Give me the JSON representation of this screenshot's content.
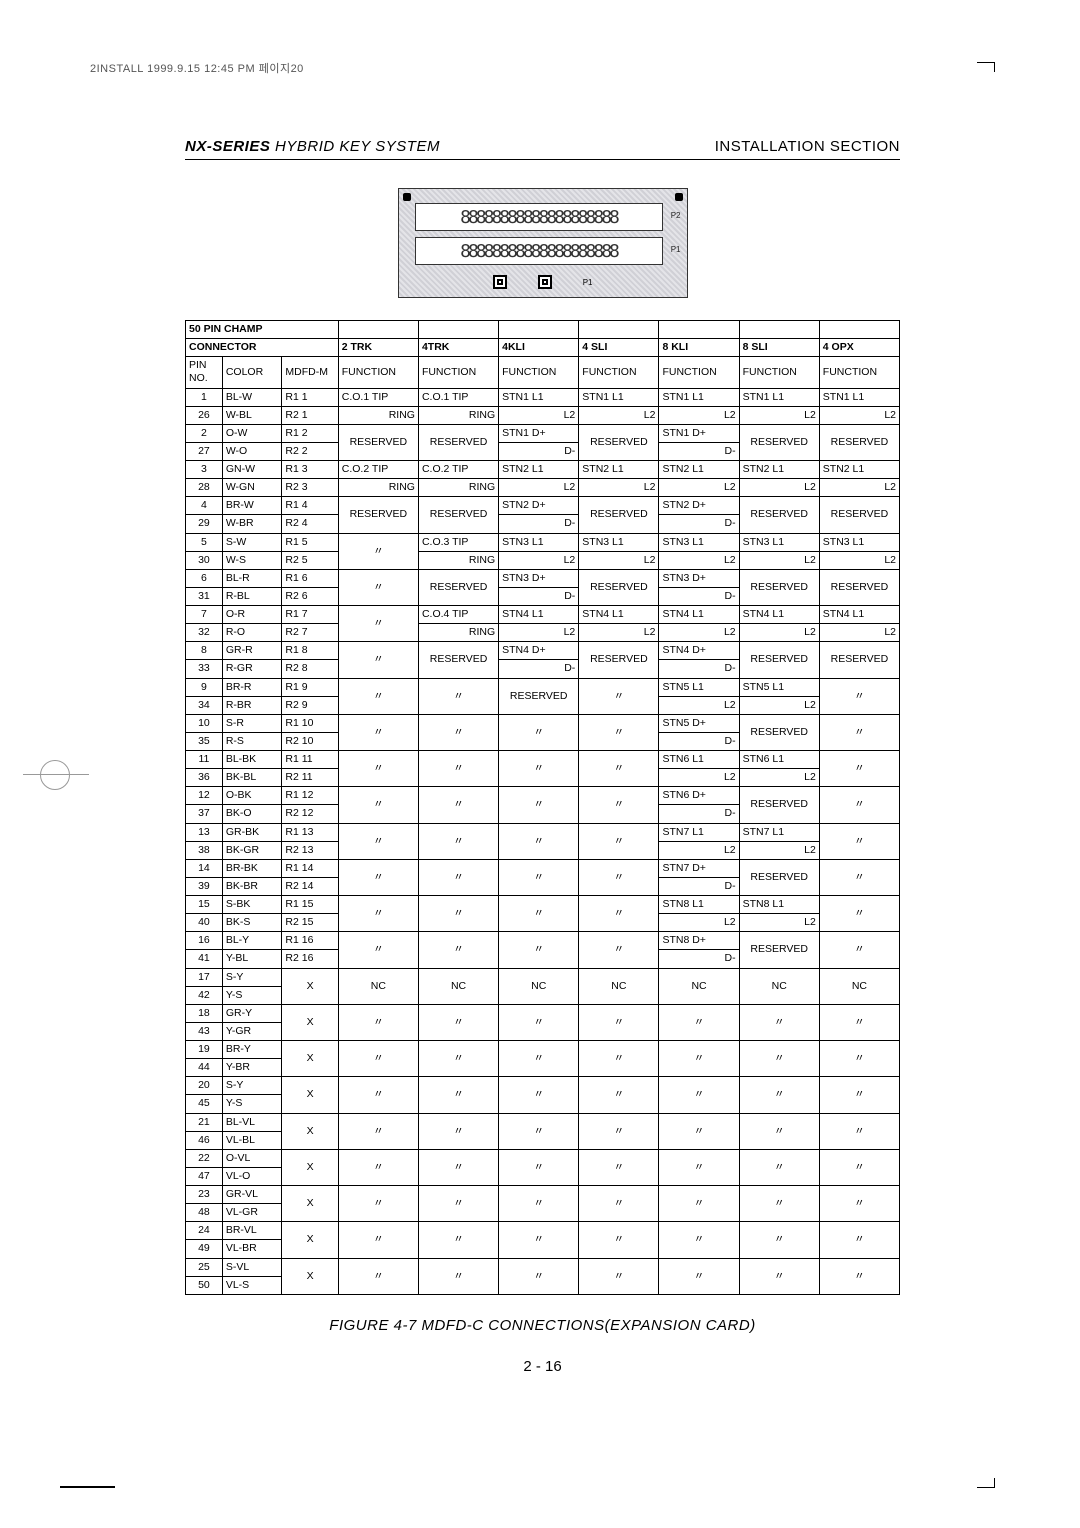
{
  "print_note": "2INSTALL  1999.9.15 12:45 PM  페이지20",
  "header": {
    "series": "NX-SERIES",
    "subtitle": "HYBRID KEY SYSTEM",
    "section": "INSTALLATION SECTION"
  },
  "connector": {
    "label_top": "P2",
    "label_bot": "P1",
    "bottom_label": "P1"
  },
  "table": {
    "title": "50 PIN CHAMP",
    "group_header_left": "CONNECTOR",
    "group_headers": [
      "2 TRK",
      "4TRK",
      "4KLI",
      "4 SLI",
      "8 KLI",
      "8 SLI",
      "4 OPX"
    ],
    "sub_headers_left": [
      "PIN NO.",
      "COLOR",
      "MDFD-M"
    ],
    "sub_header_fn": "FUNCTION",
    "rows": [
      {
        "pins": [
          "1",
          "26"
        ],
        "colors": [
          "BL-W",
          "W-BL"
        ],
        "mdfd": [
          "R1   1",
          "R2   1"
        ],
        "cells": [
          "C.O.1   TIP\nRING",
          "C.O.1   TIP\nRING",
          "STN1   L1\nL2",
          "STN1    L1\nL2",
          "STN1   L1\nL2",
          "STN1   L1\nL2",
          "STN1    L1\nL2"
        ]
      },
      {
        "pins": [
          "2",
          "27"
        ],
        "colors": [
          "O-W",
          "W-O"
        ],
        "mdfd": [
          "R1   2",
          "R2   2"
        ],
        "cells": [
          "RESERVED",
          "RESERVED",
          "STN1   D+\nD-",
          "RESERVED",
          "STN1   D+\nD-",
          "RESERVED",
          "RESERVED"
        ]
      },
      {
        "pins": [
          "3",
          "28"
        ],
        "colors": [
          "GN-W",
          "W-GN"
        ],
        "mdfd": [
          "R1   3",
          "R2   3"
        ],
        "cells": [
          "C.O.2    TIP\nRING",
          "C.O.2  TIP\nRING",
          "STN2   L1\nL2",
          "STN2    L1\nL2",
          "STN2   L1\nL2",
          "STN2   L1\nL2",
          "STN2    L1\nL2"
        ]
      },
      {
        "pins": [
          "4",
          "29"
        ],
        "colors": [
          "BR-W",
          "W-BR"
        ],
        "mdfd": [
          "R1   4",
          "R2   4"
        ],
        "cells": [
          "RESERVED",
          "RESERVED",
          "STN2   D+\nD-",
          "RESERVED",
          "STN2   D+\nD-",
          "RESERVED",
          "RESERVED"
        ]
      },
      {
        "pins": [
          "5",
          "30"
        ],
        "colors": [
          "S-W",
          "W-S"
        ],
        "mdfd": [
          "R1   5",
          "R2   5"
        ],
        "cells": [
          "〃",
          "C.O.3  TIP\nRING",
          "STN3   L1\nL2",
          "STN3    L1\nL2",
          "STN3   L1\nL2",
          "STN3  L1\nL2",
          "STN3    L1\nL2"
        ]
      },
      {
        "pins": [
          "6",
          "31"
        ],
        "colors": [
          "BL-R",
          "R-BL"
        ],
        "mdfd": [
          "R1   6",
          "R2   6"
        ],
        "cells": [
          "〃",
          "RESERVED",
          "STN3   D+\nD-",
          "RESERVED",
          "STN3   D+\nD-",
          "RESERVED",
          "RESERVED"
        ]
      },
      {
        "pins": [
          "7",
          "32"
        ],
        "colors": [
          "O-R",
          "R-O"
        ],
        "mdfd": [
          "R1   7",
          "R2   7"
        ],
        "cells": [
          "〃",
          "C.O.4  TIP\nRING",
          "STN4   L1\nL2",
          "STN4    L1\nL2",
          "STN4   L1\nL2",
          "STN4  L1\nL2",
          "STN4    L1\nL2"
        ]
      },
      {
        "pins": [
          "8",
          "33"
        ],
        "colors": [
          "GR-R",
          "R-GR"
        ],
        "mdfd": [
          "R1   8",
          "R2   8"
        ],
        "cells": [
          "〃",
          "RESERVED",
          "STN4   D+\nD-",
          "RESERVED",
          "STN4   D+\nD-",
          "RESERVED",
          "RESERVED"
        ]
      },
      {
        "pins": [
          "9",
          "34"
        ],
        "colors": [
          "BR-R",
          "R-BR"
        ],
        "mdfd": [
          "R1   9",
          "R2   9"
        ],
        "cells": [
          "〃",
          "〃",
          "RESERVED",
          "〃",
          "STN5   L1\nL2",
          "STN5  L1\nL2",
          "〃"
        ]
      },
      {
        "pins": [
          "10",
          "35"
        ],
        "colors": [
          "S-R",
          "R-S"
        ],
        "mdfd": [
          "R1  10",
          "R2  10"
        ],
        "cells": [
          "〃",
          "〃",
          "〃",
          "〃",
          "STN5   D+\nD-",
          "RESERVED",
          "〃"
        ]
      },
      {
        "pins": [
          "11",
          "36"
        ],
        "colors": [
          "BL-BK",
          "BK-BL"
        ],
        "mdfd": [
          "R1  11",
          "R2  11"
        ],
        "cells": [
          "〃",
          "〃",
          "〃",
          "〃",
          "STN6   L1\nL2",
          "STN6  L1\nL2",
          "〃"
        ]
      },
      {
        "pins": [
          "12",
          "37"
        ],
        "colors": [
          "O-BK",
          "BK-O"
        ],
        "mdfd": [
          "R1  12",
          "R2  12"
        ],
        "cells": [
          "〃",
          "〃",
          "〃",
          "〃",
          "STN6   D+\nD-",
          "RESERVED",
          "〃"
        ]
      },
      {
        "pins": [
          "13",
          "38"
        ],
        "colors": [
          "GR-BK",
          "BK-GR"
        ],
        "mdfd": [
          "R1  13",
          "R2  13"
        ],
        "cells": [
          "〃",
          "〃",
          "〃",
          "〃",
          "STN7   L1\nL2",
          "STN7  L1\nL2",
          "〃"
        ]
      },
      {
        "pins": [
          "14",
          "39"
        ],
        "colors": [
          "BR-BK",
          "BK-BR"
        ],
        "mdfd": [
          "R1  14",
          "R2  14"
        ],
        "cells": [
          "〃",
          "〃",
          "〃",
          "〃",
          "STN7   D+\nD-",
          "RESERVED",
          "〃"
        ]
      },
      {
        "pins": [
          "15",
          "40"
        ],
        "colors": [
          "S-BK",
          "BK-S"
        ],
        "mdfd": [
          "R1  15",
          "R2  15"
        ],
        "cells": [
          "〃",
          "〃",
          "〃",
          "〃",
          "STN8   L1\nL2",
          "STN8  L1\nL2",
          "〃"
        ]
      },
      {
        "pins": [
          "16",
          "41"
        ],
        "colors": [
          "BL-Y",
          "Y-BL"
        ],
        "mdfd": [
          "R1  16",
          "R2  16"
        ],
        "cells": [
          "〃",
          "〃",
          "〃",
          "〃",
          "STN8   D+\nD-",
          "RESERVED",
          "〃"
        ]
      },
      {
        "pins": [
          "17",
          "42"
        ],
        "colors": [
          "S-Y",
          "Y-S"
        ],
        "mdfd": [
          "X",
          ""
        ],
        "cells": [
          "NC",
          "NC",
          "NC",
          "NC",
          "NC",
          "NC",
          "NC"
        ]
      },
      {
        "pins": [
          "18",
          "43"
        ],
        "colors": [
          "GR-Y",
          "Y-GR"
        ],
        "mdfd": [
          "X",
          ""
        ],
        "cells": [
          "〃",
          "〃",
          "〃",
          "〃",
          "〃",
          "〃",
          "〃"
        ]
      },
      {
        "pins": [
          "19",
          "44"
        ],
        "colors": [
          "BR-Y",
          "Y-BR"
        ],
        "mdfd": [
          "X",
          ""
        ],
        "cells": [
          "〃",
          "〃",
          "〃",
          "〃",
          "〃",
          "〃",
          "〃"
        ]
      },
      {
        "pins": [
          "20",
          "45"
        ],
        "colors": [
          "S-Y",
          "Y-S"
        ],
        "mdfd": [
          "X",
          ""
        ],
        "cells": [
          "〃",
          "〃",
          "〃",
          "〃",
          "〃",
          "〃",
          "〃"
        ]
      },
      {
        "pins": [
          "21",
          "46"
        ],
        "colors": [
          "BL-VL",
          "VL-BL"
        ],
        "mdfd": [
          "X",
          ""
        ],
        "cells": [
          "〃",
          "〃",
          "〃",
          "〃",
          "〃",
          "〃",
          "〃"
        ]
      },
      {
        "pins": [
          "22",
          "47"
        ],
        "colors": [
          "O-VL",
          "VL-O"
        ],
        "mdfd": [
          "X",
          ""
        ],
        "cells": [
          "〃",
          "〃",
          "〃",
          "〃",
          "〃",
          "〃",
          "〃"
        ]
      },
      {
        "pins": [
          "23",
          "48"
        ],
        "colors": [
          "GR-VL",
          "VL-GR"
        ],
        "mdfd": [
          "X",
          ""
        ],
        "cells": [
          "〃",
          "〃",
          "〃",
          "〃",
          "〃",
          "〃",
          "〃"
        ]
      },
      {
        "pins": [
          "24",
          "49"
        ],
        "colors": [
          "BR-VL",
          "VL-BR"
        ],
        "mdfd": [
          "X",
          ""
        ],
        "cells": [
          "〃",
          "〃",
          "〃",
          "〃",
          "〃",
          "〃",
          "〃"
        ]
      },
      {
        "pins": [
          "25",
          "50"
        ],
        "colors": [
          "S-VL",
          "VL-S"
        ],
        "mdfd": [
          "X",
          ""
        ],
        "cells": [
          "〃",
          "〃",
          "〃",
          "〃",
          "〃",
          "〃",
          "〃"
        ]
      }
    ]
  },
  "caption": "FIGURE 4-7 MDFD-C CONNECTIONS(EXPANSION CARD)",
  "page_number": "2 - 16"
}
